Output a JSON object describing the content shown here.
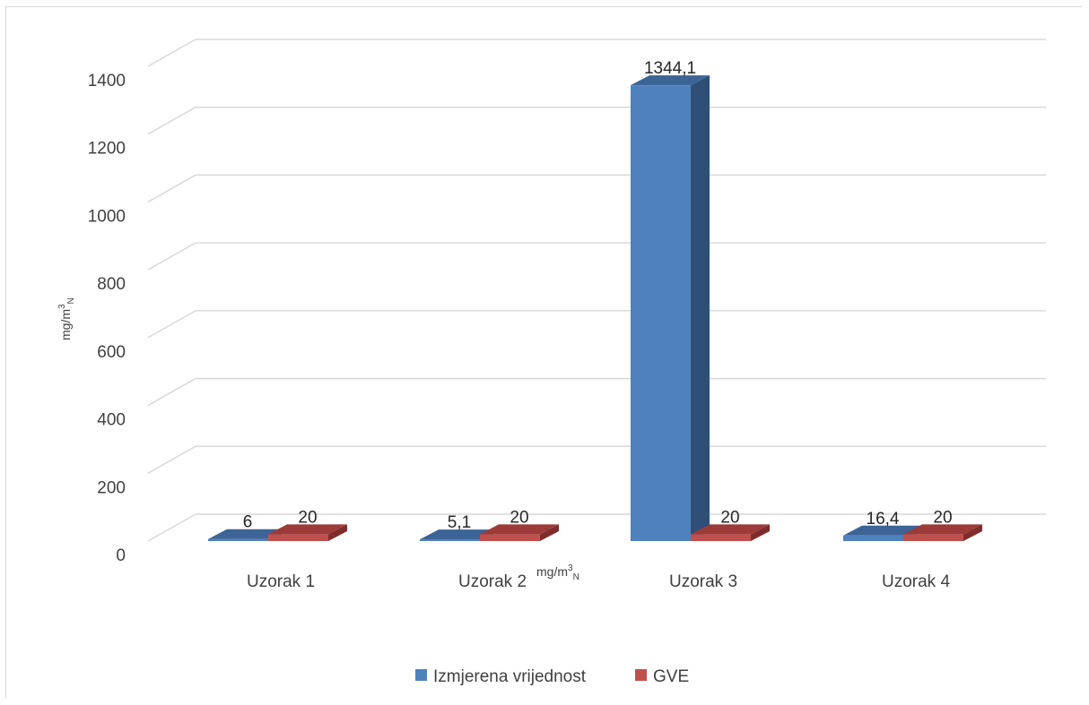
{
  "chart_data": {
    "type": "bar",
    "categories": [
      "Uzorak 1",
      "Uzorak 2",
      "Uzorak 3",
      "Uzorak 4"
    ],
    "series": [
      {
        "name": "Izmjerena vrijednost",
        "values": [
          6,
          5.1,
          1344.1,
          16.4
        ],
        "labels": [
          "6",
          "5,1",
          "1344,1",
          "16,4"
        ],
        "color": "#4f81bd",
        "dark": "#2f4f77",
        "top": "#3d6496"
      },
      {
        "name": "GVE",
        "values": [
          20,
          20,
          20,
          20
        ],
        "labels": [
          "20",
          "20",
          "20",
          "20"
        ],
        "color": "#c0504d",
        "dark": "#7f2d2b",
        "top": "#9c3b38"
      }
    ],
    "ylim": [
      0,
      1400
    ],
    "yticks": [
      0,
      200,
      400,
      600,
      800,
      1000,
      1200,
      1400
    ],
    "ylabel": {
      "main": "mg/m",
      "sup": "3",
      "sub": "N"
    },
    "xunit": {
      "main": "mg/m",
      "sup": "3",
      "sub": "N"
    },
    "grid": true,
    "legend": "bottom",
    "style": "3d-clustered-column"
  }
}
